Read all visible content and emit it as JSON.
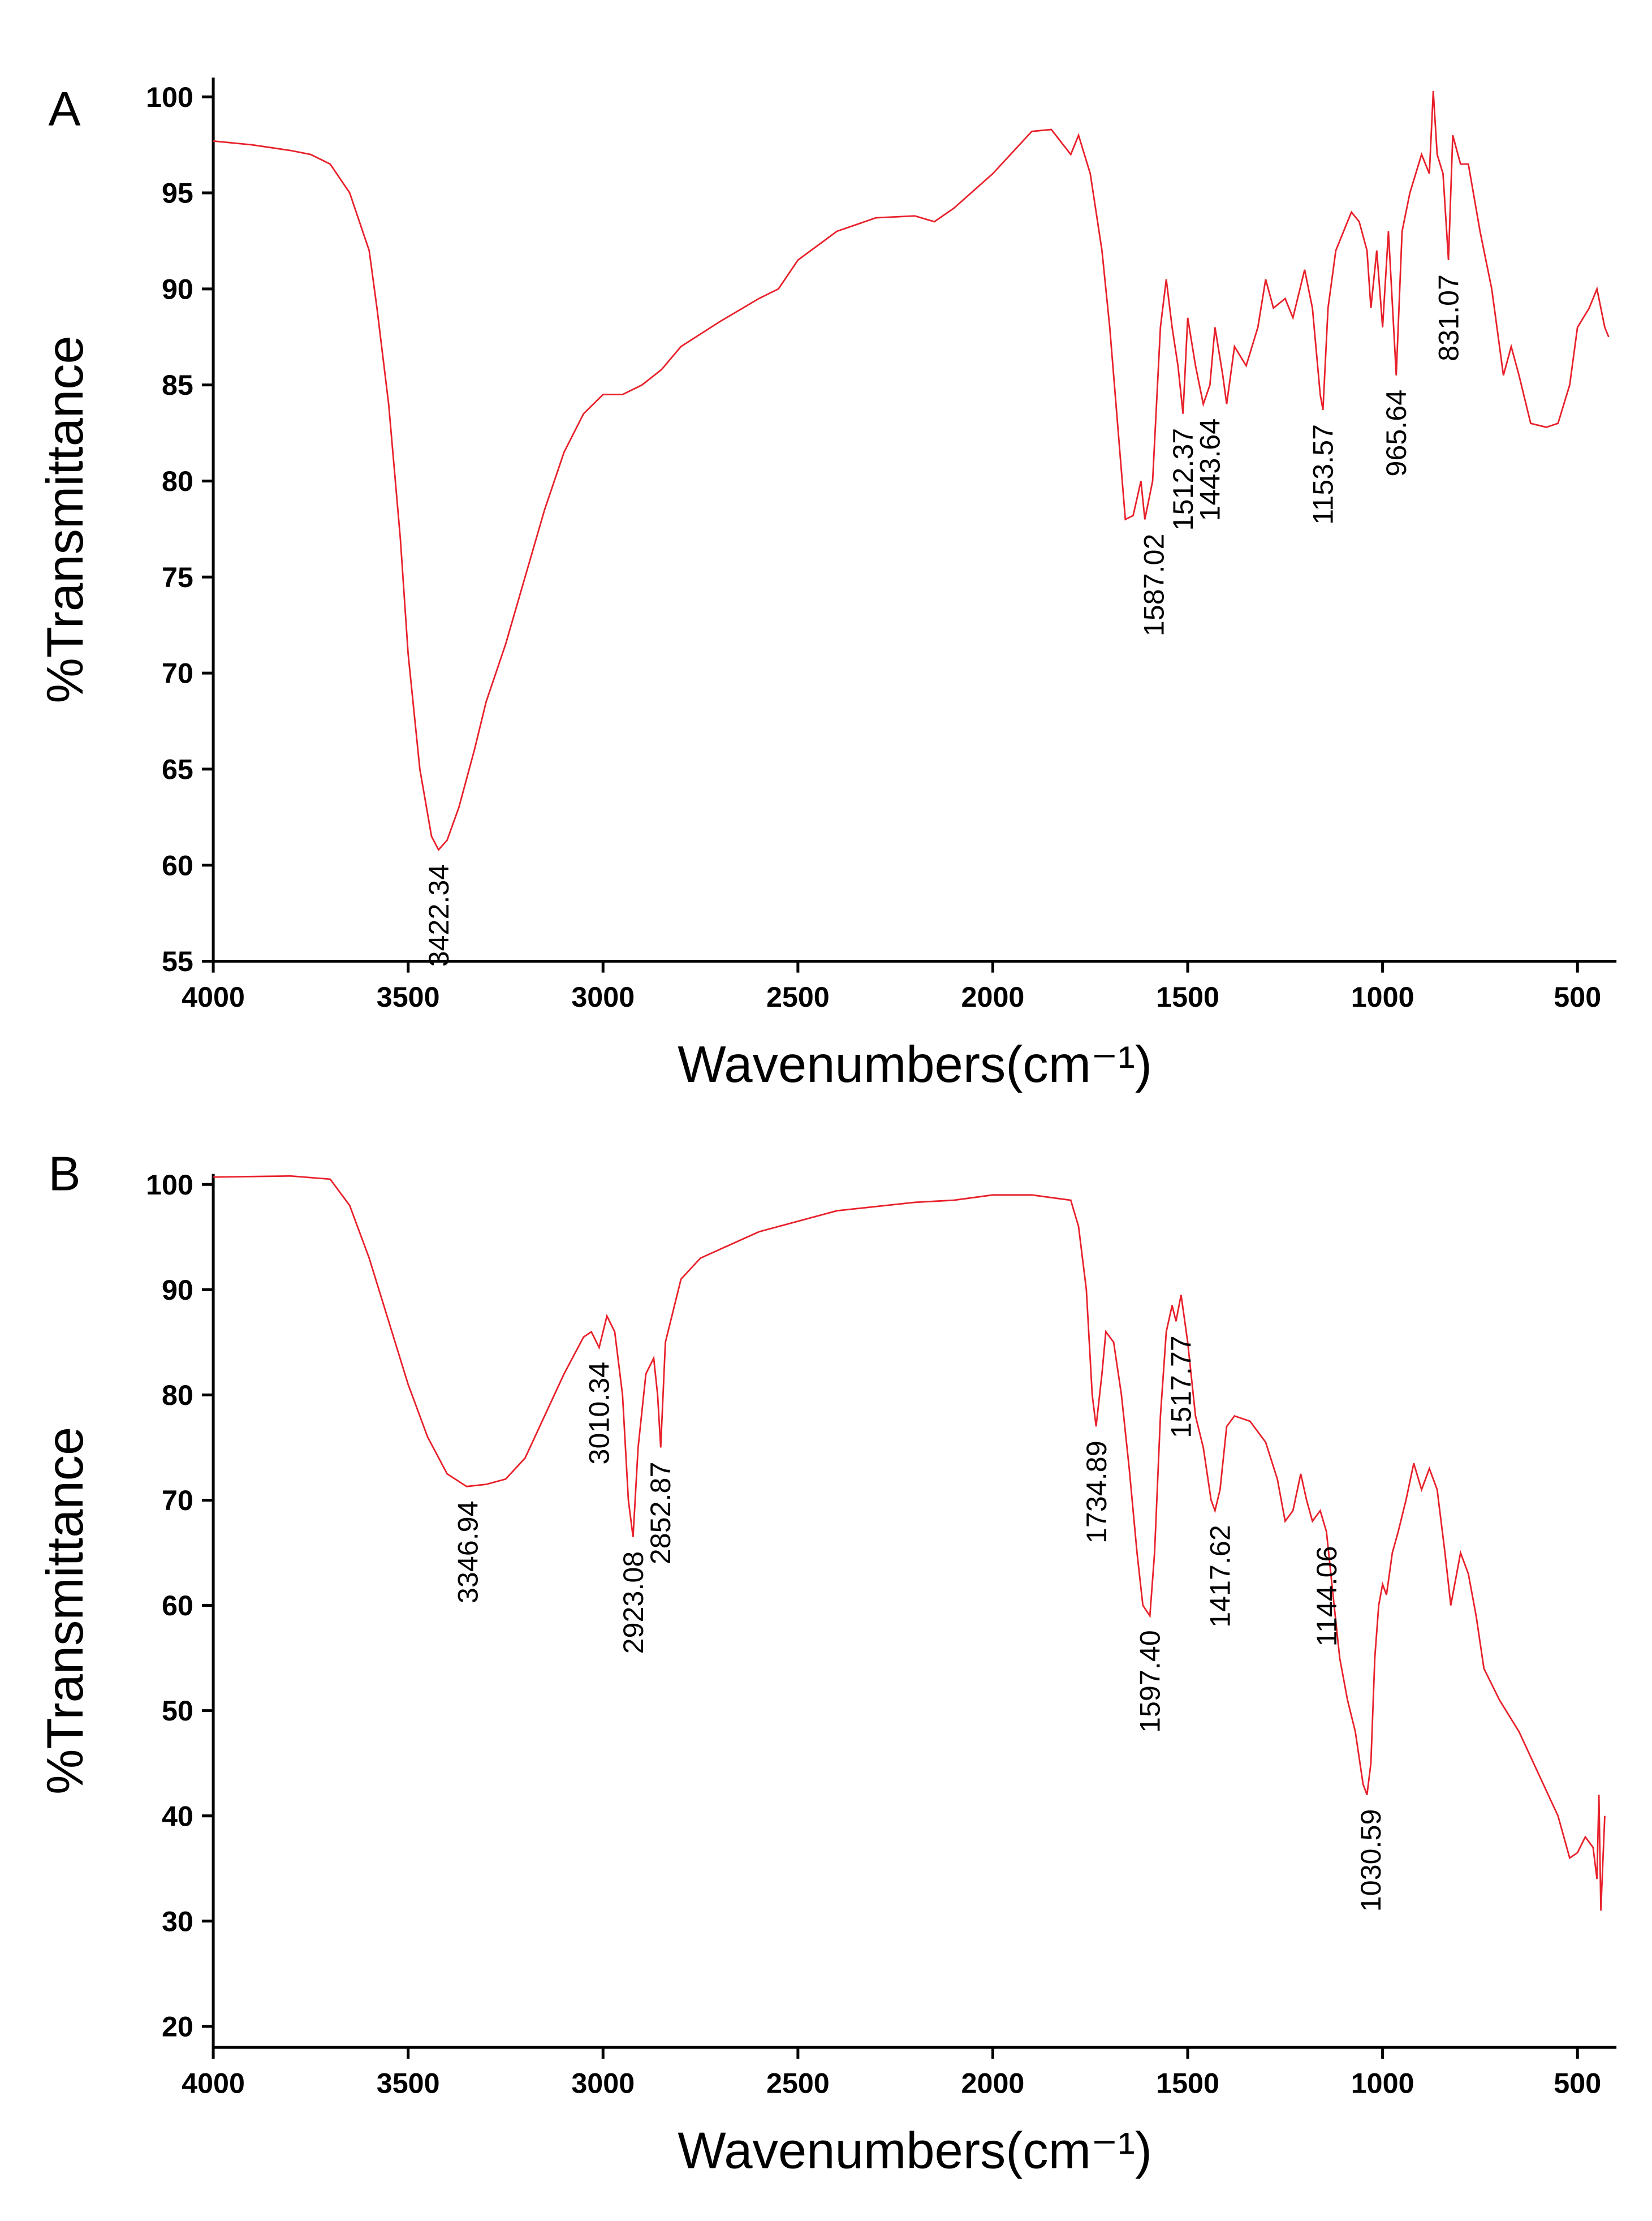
{
  "chart_data": [
    {
      "type": "line",
      "panel": "A",
      "xlabel": "Wavenumbers(cm⁻¹)",
      "ylabel": "%Transmittance",
      "xlim": [
        4000,
        400
      ],
      "ylim": [
        55,
        101
      ],
      "xticks": [
        4000,
        3500,
        3000,
        2500,
        2000,
        1500,
        1000,
        500
      ],
      "yticks": [
        55,
        60,
        65,
        70,
        75,
        80,
        85,
        90,
        95,
        100
      ],
      "color": "#e8202a",
      "x": [
        4000,
        3900,
        3800,
        3750,
        3700,
        3650,
        3600,
        3580,
        3550,
        3520,
        3500,
        3470,
        3440,
        3422,
        3400,
        3370,
        3330,
        3300,
        3250,
        3200,
        3150,
        3100,
        3050,
        3000,
        2950,
        2900,
        2850,
        2800,
        2700,
        2600,
        2550,
        2500,
        2400,
        2300,
        2200,
        2150,
        2100,
        2000,
        1900,
        1850,
        1800,
        1780,
        1750,
        1720,
        1700,
        1680,
        1660,
        1640,
        1620,
        1610,
        1590,
        1570,
        1555,
        1540,
        1525,
        1512,
        1500,
        1480,
        1460,
        1443,
        1430,
        1410,
        1400,
        1380,
        1350,
        1320,
        1300,
        1280,
        1250,
        1230,
        1200,
        1180,
        1160,
        1153,
        1140,
        1120,
        1100,
        1080,
        1060,
        1040,
        1030,
        1015,
        1000,
        985,
        965,
        950,
        930,
        900,
        880,
        870,
        860,
        845,
        831,
        820,
        800,
        780,
        750,
        720,
        700,
        690,
        670,
        650,
        620,
        580,
        550,
        520,
        500,
        470,
        450,
        430,
        420
      ],
      "values": [
        97.7,
        97.5,
        97.2,
        97.0,
        96.5,
        95,
        92,
        89,
        84,
        77,
        71,
        65,
        61.5,
        60.8,
        61.3,
        63,
        66,
        68.5,
        71.5,
        75,
        78.5,
        81.5,
        83.5,
        84.5,
        84.5,
        85,
        85.8,
        87,
        88.3,
        89.5,
        90,
        91.5,
        93,
        93.7,
        93.8,
        93.5,
        94.2,
        96,
        98.2,
        98.3,
        97,
        98,
        96,
        92,
        88,
        83,
        78,
        78.2,
        80,
        78,
        80,
        88,
        90.5,
        88,
        86,
        83.5,
        88.5,
        86,
        84,
        85,
        88,
        85.5,
        84,
        87,
        86,
        88,
        90.5,
        89,
        89.5,
        88.5,
        91,
        89,
        84.5,
        83.7,
        89,
        92,
        93,
        94,
        93.5,
        92,
        89,
        92,
        88,
        93,
        85.5,
        93,
        95,
        97,
        96,
        100.3,
        97,
        96,
        91.5,
        98,
        96.5,
        96.5,
        93,
        90,
        87,
        85.5,
        87,
        85.5,
        83,
        82.8,
        83,
        85,
        88,
        89,
        90,
        88,
        87.5
      ],
      "annotations": [
        {
          "text": "3422.34",
          "x": 3422.34,
          "y": 60.8
        },
        {
          "text": "1587.02",
          "x": 1587.02,
          "y": 78
        },
        {
          "text": "1512.37",
          "x": 1512.37,
          "y": 83.5
        },
        {
          "text": "1443.64",
          "x": 1443.64,
          "y": 84
        },
        {
          "text": "1153.57",
          "x": 1153.57,
          "y": 83.7
        },
        {
          "text": "965.64",
          "x": 965.64,
          "y": 85.5
        },
        {
          "text": "831.07",
          "x": 831.07,
          "y": 91.5
        }
      ]
    },
    {
      "type": "line",
      "panel": "B",
      "xlabel": "Wavenumbers(cm⁻¹)",
      "ylabel": "%Transmittance",
      "xlim": [
        4000,
        400
      ],
      "ylim": [
        18,
        101
      ],
      "xticks": [
        4000,
        3500,
        3000,
        2500,
        2000,
        1500,
        1000,
        500
      ],
      "yticks": [
        20,
        30,
        40,
        50,
        60,
        70,
        80,
        90,
        100
      ],
      "color": "#e8202a",
      "x": [
        4000,
        3800,
        3700,
        3650,
        3600,
        3550,
        3500,
        3450,
        3400,
        3350,
        3300,
        3250,
        3200,
        3150,
        3100,
        3050,
        3030,
        3010,
        2990,
        2970,
        2950,
        2935,
        2923,
        2910,
        2890,
        2870,
        2860,
        2852,
        2840,
        2800,
        2750,
        2600,
        2400,
        2200,
        2100,
        2000,
        1900,
        1800,
        1780,
        1760,
        1745,
        1735,
        1720,
        1710,
        1690,
        1670,
        1650,
        1630,
        1615,
        1597,
        1585,
        1570,
        1555,
        1540,
        1530,
        1517,
        1500,
        1480,
        1460,
        1440,
        1430,
        1417,
        1400,
        1380,
        1340,
        1300,
        1270,
        1250,
        1230,
        1210,
        1195,
        1180,
        1160,
        1144,
        1130,
        1110,
        1090,
        1070,
        1050,
        1040,
        1030,
        1020,
        1010,
        1000,
        990,
        975,
        960,
        940,
        920,
        900,
        880,
        860,
        840,
        825,
        810,
        800,
        780,
        760,
        740,
        700,
        650,
        600,
        550,
        520,
        500,
        480,
        460,
        450,
        445,
        440,
        430
      ],
      "values": [
        100.7,
        100.8,
        100.5,
        98,
        93,
        87,
        81,
        76,
        72.5,
        71.3,
        71.5,
        72,
        74,
        78,
        82,
        85.5,
        86,
        84.5,
        87.5,
        86,
        80,
        70,
        66.5,
        75,
        82,
        83.5,
        80,
        75,
        85,
        91,
        93,
        95.5,
        97.5,
        98.3,
        98.5,
        99,
        99,
        98.5,
        96,
        90,
        80,
        77,
        82,
        86,
        85,
        80,
        73,
        65,
        60,
        59,
        65,
        78,
        86,
        88.5,
        87,
        89.5,
        85,
        78,
        75,
        70,
        69,
        71,
        77,
        78,
        77.5,
        75.5,
        72,
        68,
        69,
        72.5,
        70,
        68,
        69,
        67,
        62,
        55,
        51,
        48,
        43,
        42,
        45,
        55,
        60,
        62,
        61,
        65,
        67,
        70,
        73.5,
        71,
        73,
        71,
        65,
        60,
        63,
        65,
        63,
        59,
        54,
        51,
        48,
        44,
        40,
        36,
        36.5,
        38,
        37,
        34,
        42,
        31,
        40
      ],
      "annotations": [
        {
          "text": "3346.94",
          "x": 3346.94,
          "y": 71.3
        },
        {
          "text": "3010.34",
          "x": 3010.34,
          "y": 84.5
        },
        {
          "text": "2923.08",
          "x": 2923.08,
          "y": 66.5
        },
        {
          "text": "2852.87",
          "x": 2852.87,
          "y": 75
        },
        {
          "text": "1734.89",
          "x": 1734.89,
          "y": 77
        },
        {
          "text": "1597.40",
          "x": 1597.4,
          "y": 59
        },
        {
          "text": "1517.77",
          "x": 1517.77,
          "y": 87
        },
        {
          "text": "1417.62",
          "x": 1417.62,
          "y": 69
        },
        {
          "text": "1144.06",
          "x": 1144.06,
          "y": 67
        },
        {
          "text": "1030.59",
          "x": 1030.59,
          "y": 42
        }
      ]
    }
  ]
}
